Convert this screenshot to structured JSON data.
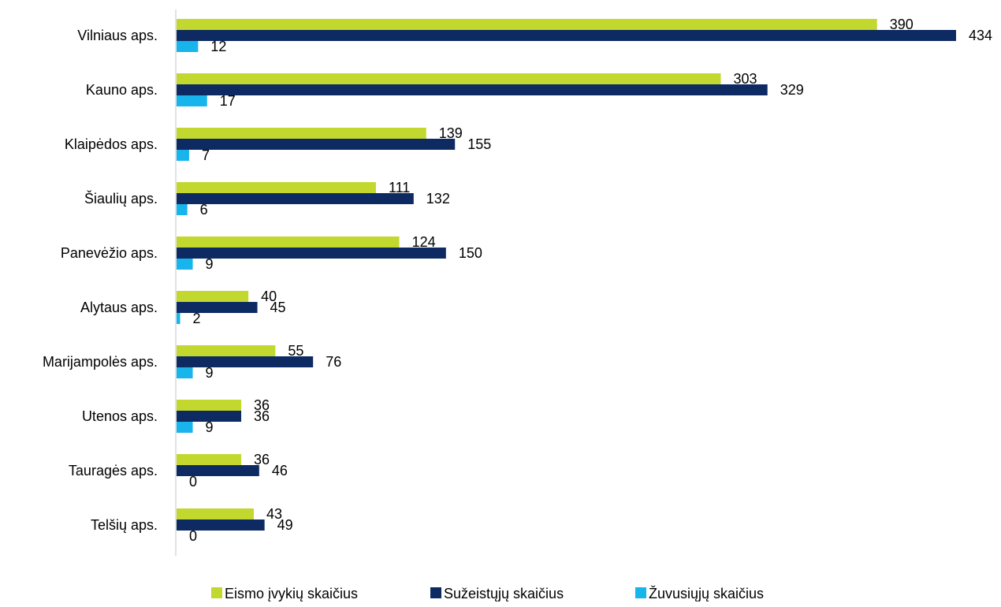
{
  "chart_data": {
    "type": "bar",
    "orientation": "horizontal",
    "categories": [
      "Vilniaus aps.",
      "Kauno aps.",
      "Klaipėdos aps.",
      "Šiaulių aps.",
      "Panevėžio aps.",
      "Alytaus aps.",
      "Marijampolės aps.",
      "Utenos aps.",
      "Tauragės aps.",
      "Telšių aps."
    ],
    "series": [
      {
        "name": "Eismo įvykių skaičius",
        "color": "#c3d82e",
        "values": [
          390,
          303,
          139,
          111,
          124,
          40,
          55,
          36,
          36,
          43
        ]
      },
      {
        "name": "Sužeistųjų skaičius",
        "color": "#0d2a63",
        "values": [
          434,
          329,
          155,
          132,
          150,
          45,
          76,
          36,
          46,
          49
        ]
      },
      {
        "name": "Žuvusiųjų skaičius",
        "color": "#18b4ec",
        "values": [
          12,
          17,
          7,
          6,
          9,
          2,
          9,
          9,
          0,
          0
        ]
      }
    ],
    "xlim": [
      0,
      434
    ],
    "grid": false,
    "legend_position": "bottom"
  }
}
